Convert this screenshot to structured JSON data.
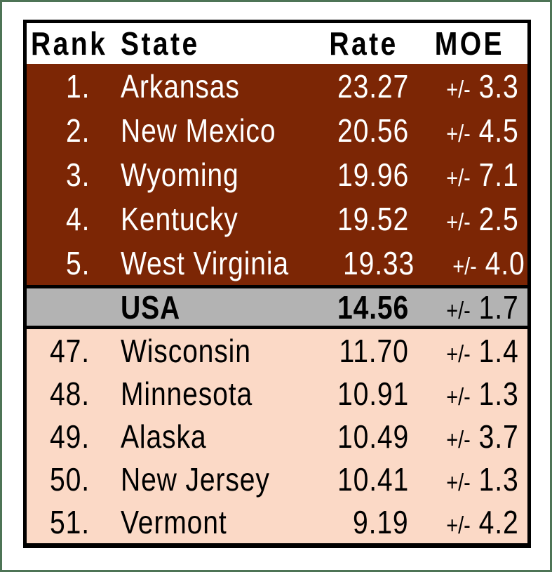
{
  "chart_data": {
    "type": "table",
    "columns": {
      "rank": "Rank",
      "state": "State",
      "rate": "Rate",
      "moe": "MOE"
    },
    "pm": "+/-",
    "top_rows": [
      {
        "rank": "1.",
        "state": "Arkansas",
        "rate": "23.27",
        "moe": "3.3"
      },
      {
        "rank": "2.",
        "state": "New Mexico",
        "rate": "20.56",
        "moe": "4.5"
      },
      {
        "rank": "3.",
        "state": "Wyoming",
        "rate": "19.96",
        "moe": "7.1"
      },
      {
        "rank": "4.",
        "state": "Kentucky",
        "rate": "19.52",
        "moe": "2.5"
      },
      {
        "rank": "5.",
        "state": "West Virginia",
        "rate": "19.33",
        "moe": "4.0"
      }
    ],
    "usa_row": {
      "rank": "",
      "state": "USA",
      "rate": "14.56",
      "moe": "1.7"
    },
    "bottom_rows": [
      {
        "rank": "47.",
        "state": "Wisconsin",
        "rate": "11.70",
        "moe": "1.4"
      },
      {
        "rank": "48.",
        "state": "Minnesota",
        "rate": "10.91",
        "moe": "1.3"
      },
      {
        "rank": "49.",
        "state": "Alaska",
        "rate": "10.49",
        "moe": "3.7"
      },
      {
        "rank": "50.",
        "state": "New Jersey",
        "rate": "10.41",
        "moe": "1.3"
      },
      {
        "rank": "51.",
        "state": "Vermont",
        "rate": "9.19",
        "moe": "4.2"
      }
    ],
    "layout_hints": {
      "top_section_bg": "#7C2605",
      "top_section_text": "#FFFFFF",
      "usa_row_bg": "#B3B3B3",
      "bottom_section_bg": "#FBD9C6",
      "bottom_section_text": "#000000",
      "table_border": "#000000",
      "outer_frame": "#4E7456",
      "header_bg": "#FFFFFF"
    }
  }
}
